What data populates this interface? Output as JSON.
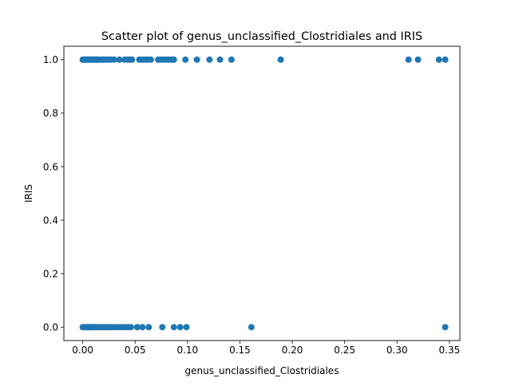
{
  "chart_data": {
    "type": "scatter",
    "title": "Scatter plot of genus_unclassified_Clostridiales and IRIS",
    "xlabel": "genus_unclassified_Clostridiales",
    "ylabel": "IRIS",
    "xlim": [
      -0.018,
      0.36
    ],
    "ylim": [
      -0.05,
      1.05
    ],
    "xticks": [
      0.0,
      0.05,
      0.1,
      0.15,
      0.2,
      0.25,
      0.3,
      0.35
    ],
    "xtick_labels": [
      "0.00",
      "0.05",
      "0.10",
      "0.15",
      "0.20",
      "0.25",
      "0.30",
      "0.35"
    ],
    "yticks": [
      0.0,
      0.2,
      0.4,
      0.6,
      0.8,
      1.0
    ],
    "ytick_labels": [
      "0.0",
      "0.2",
      "0.4",
      "0.6",
      "0.8",
      "1.0"
    ],
    "grid": false,
    "marker_color": "#1f77b4",
    "x": [
      0.0,
      0.001,
      0.002,
      0.003,
      0.004,
      0.005,
      0.006,
      0.007,
      0.008,
      0.009,
      0.01,
      0.011,
      0.012,
      0.013,
      0.014,
      0.015,
      0.017,
      0.019,
      0.02,
      0.022,
      0.024,
      0.025,
      0.027,
      0.03,
      0.035,
      0.04,
      0.043,
      0.045,
      0.047,
      0.054,
      0.057,
      0.06,
      0.062,
      0.065,
      0.072,
      0.075,
      0.077,
      0.08,
      0.082,
      0.085,
      0.087,
      0.098,
      0.109,
      0.121,
      0.131,
      0.142,
      0.189,
      0.311,
      0.32,
      0.34,
      0.346,
      0.0,
      0.001,
      0.002,
      0.003,
      0.004,
      0.005,
      0.006,
      0.007,
      0.008,
      0.009,
      0.01,
      0.012,
      0.014,
      0.016,
      0.018,
      0.02,
      0.022,
      0.024,
      0.026,
      0.028,
      0.031,
      0.034,
      0.037,
      0.04,
      0.043,
      0.046,
      0.052,
      0.057,
      0.063,
      0.076,
      0.087,
      0.093,
      0.099,
      0.161,
      0.346
    ],
    "y": [
      1,
      1,
      1,
      1,
      1,
      1,
      1,
      1,
      1,
      1,
      1,
      1,
      1,
      1,
      1,
      1,
      1,
      1,
      1,
      1,
      1,
      1,
      1,
      1,
      1,
      1,
      1,
      1,
      1,
      1,
      1,
      1,
      1,
      1,
      1,
      1,
      1,
      1,
      1,
      1,
      1,
      1,
      1,
      1,
      1,
      1,
      1,
      1,
      1,
      1,
      1,
      0,
      0,
      0,
      0,
      0,
      0,
      0,
      0,
      0,
      0,
      0,
      0,
      0,
      0,
      0,
      0,
      0,
      0,
      0,
      0,
      0,
      0,
      0,
      0,
      0,
      0,
      0,
      0,
      0,
      0,
      0,
      0,
      0,
      0,
      0
    ]
  }
}
